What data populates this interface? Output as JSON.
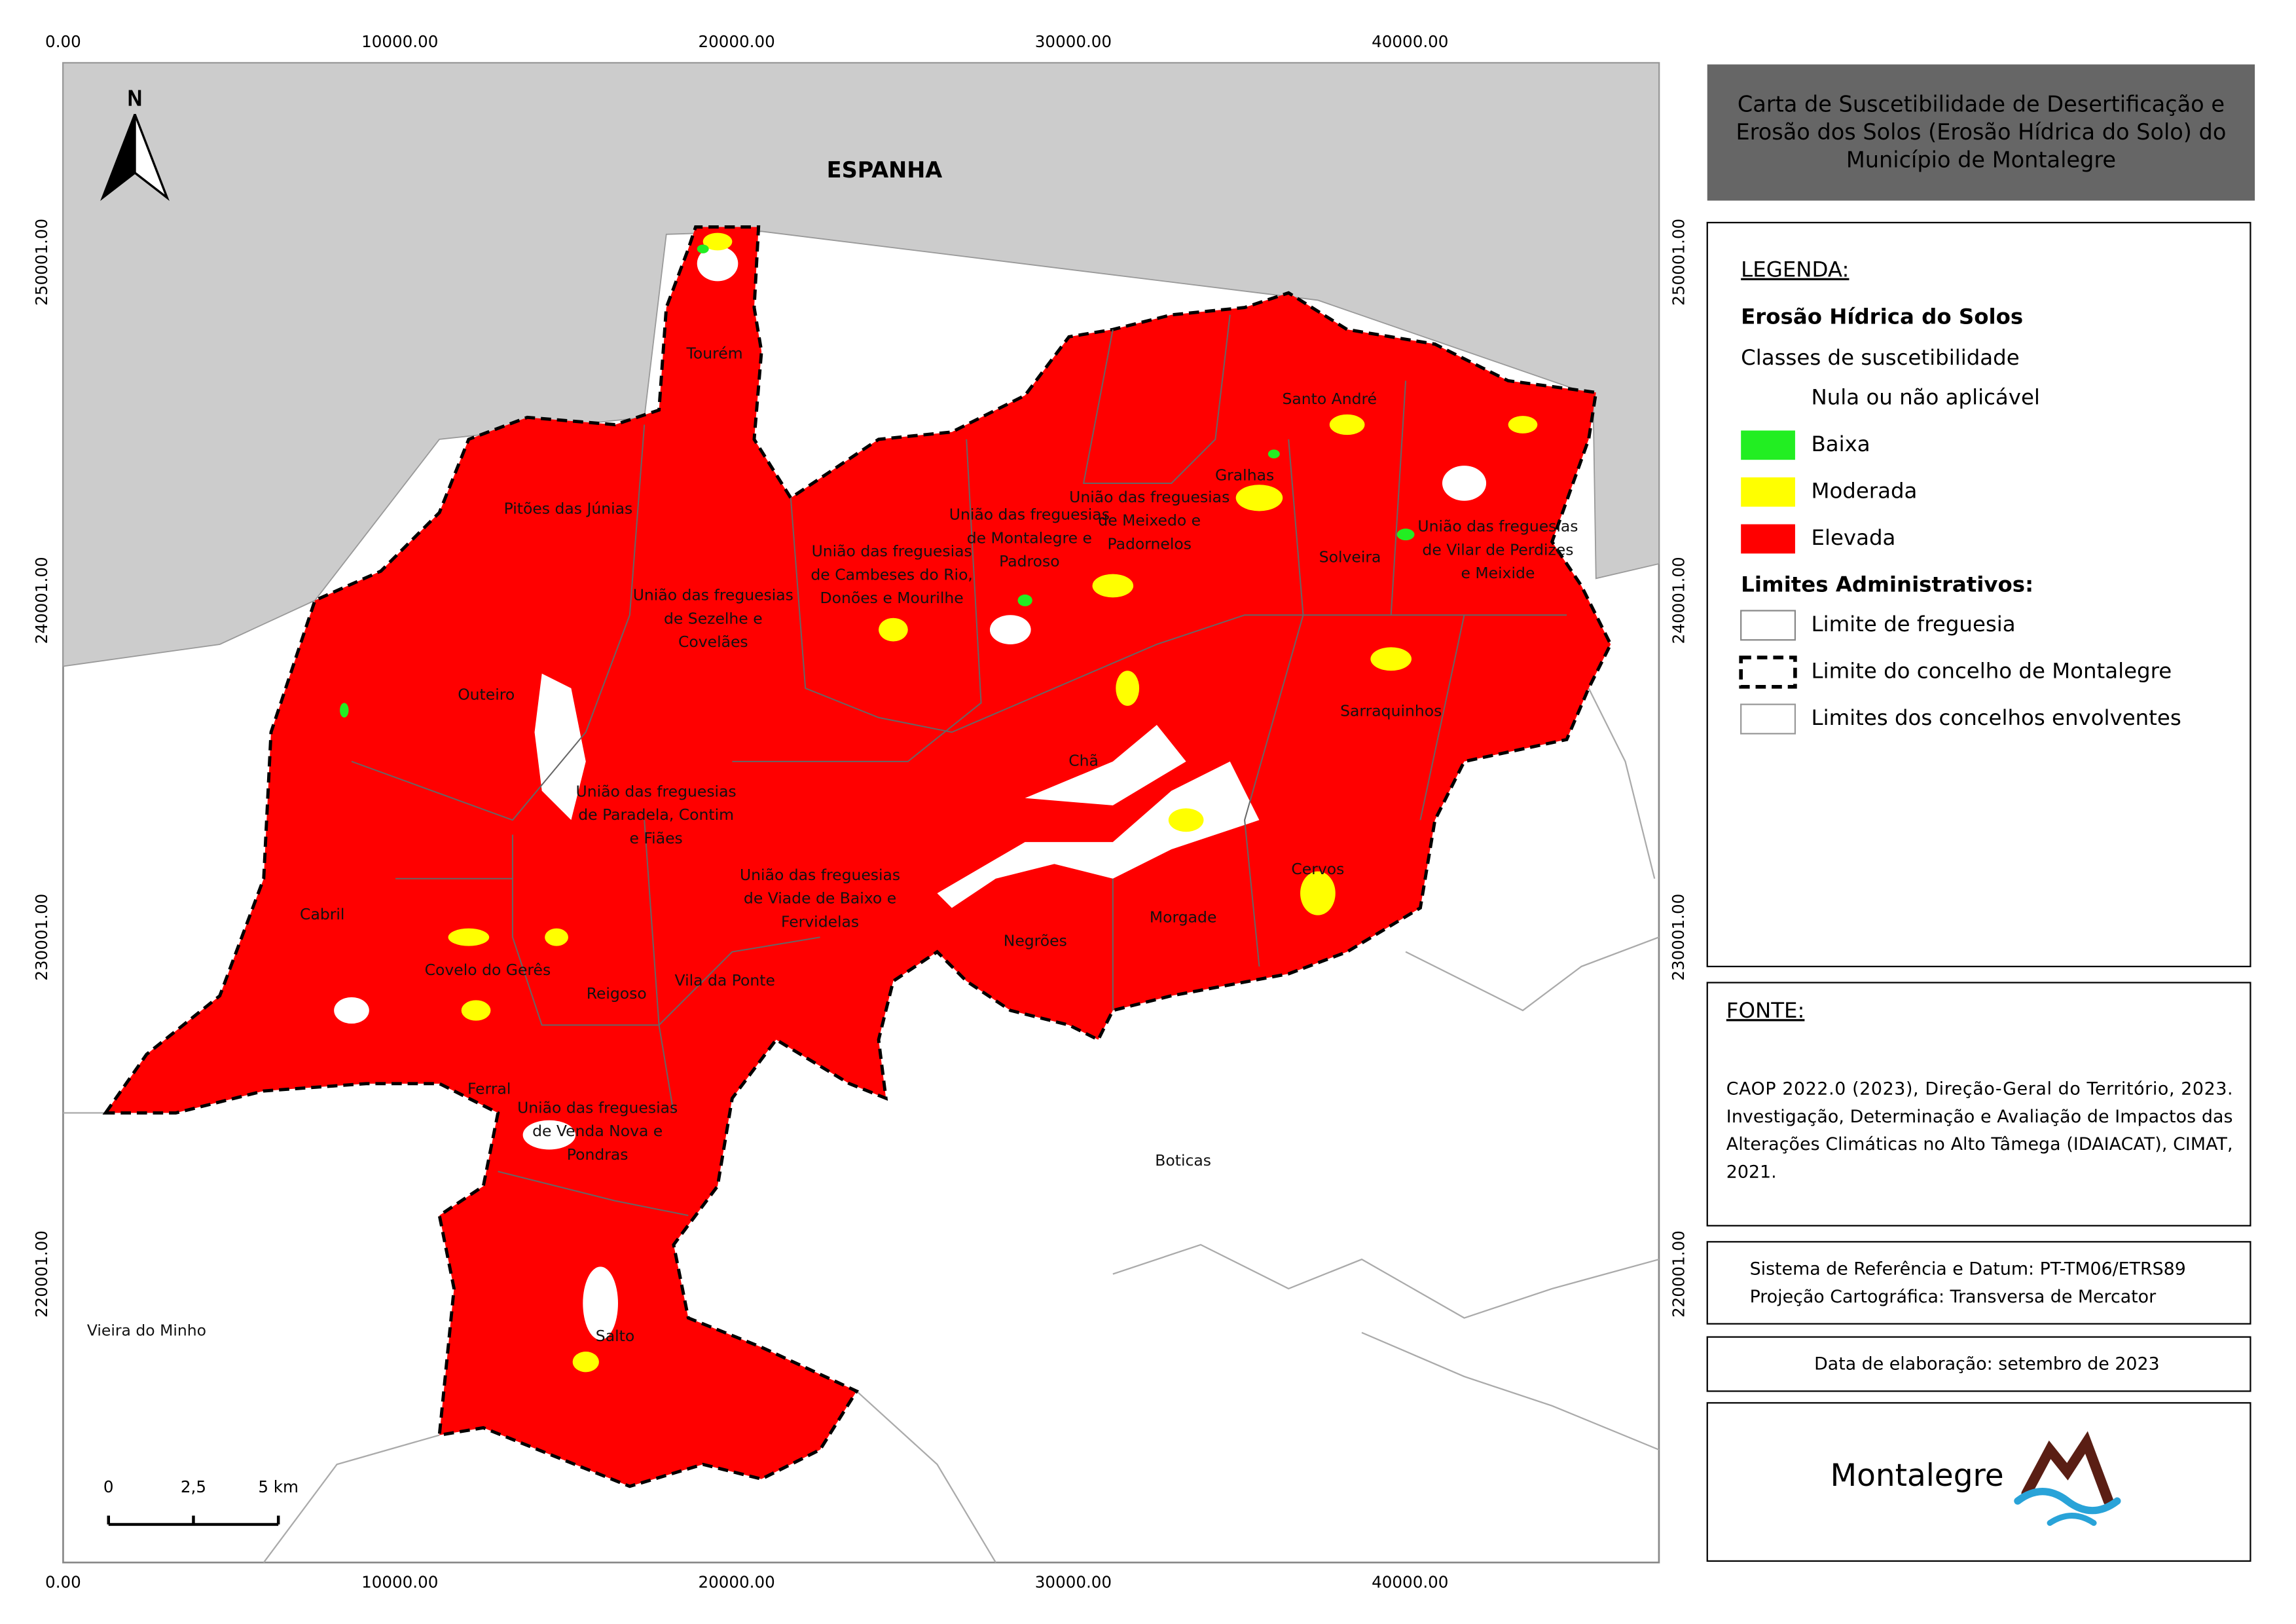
{
  "title_lines": [
    "Carta de Suscetibilidade de Desertificação e",
    "Erosão dos Solos (Erosão Hídrica do Solo) do",
    "Município de Montalegre"
  ],
  "axes": {
    "top": [
      "0.00",
      "10000.00",
      "20000.00",
      "30000.00",
      "40000.00"
    ],
    "bottom": [
      "0.00",
      "10000.00",
      "20000.00",
      "30000.00",
      "40000.00"
    ],
    "left": [
      "250001.00",
      "240001.00",
      "230001.00",
      "220001.00"
    ],
    "right": [
      "250001.00",
      "240001.00",
      "230001.00",
      "220001.00"
    ]
  },
  "north": "N",
  "country": "ESPANHA",
  "places": [
    [
      "Tourém"
    ],
    [
      "Pitões das Júnias"
    ],
    [
      "União das freguesias",
      "de Sezelhe e",
      "Covelães"
    ],
    [
      "Outeiro"
    ],
    [
      "União das freguesias",
      "de Paradela, Contim",
      "e Fiães"
    ],
    [
      "Cabril"
    ],
    [
      "Covelo do Gerês"
    ],
    [
      "Reigoso"
    ],
    [
      "Vila da Ponte"
    ],
    [
      "Ferral"
    ],
    [
      "União das freguesias",
      "de Venda Nova e",
      "Pondras"
    ],
    [
      "Salto"
    ],
    [
      "União das freguesias",
      "de Viade de Baixo e",
      "Fervidelas"
    ],
    [
      "União das freguesias",
      "de Cambeses do Rio,",
      "Donões e Mourilhe"
    ],
    [
      "União das freguesias",
      "de Montalegre e",
      "Padroso"
    ],
    [
      "União das freguesias",
      "de Meixedo e",
      "Padornelos"
    ],
    [
      "Gralhas"
    ],
    [
      "Santo André"
    ],
    [
      "Solveira"
    ],
    [
      "União das freguesias",
      "de Vilar de Perdizes",
      "e Meixide"
    ],
    [
      "Sarraquinhos"
    ],
    [
      "Chã"
    ],
    [
      "Negrões"
    ],
    [
      "Morgade"
    ],
    [
      "Cervos"
    ],
    [
      "Boticas"
    ],
    [
      "Vieira do Minho"
    ]
  ],
  "scale_bar": [
    "0",
    "2,5",
    "5 km"
  ],
  "legend": {
    "heading": "LEGENDA:",
    "subtitle": "Erosão Hídrica do Solos",
    "classes_title": "Classes de suscetibilidade",
    "classes": [
      {
        "label": "Nula ou não aplicável",
        "color": "#ffffff"
      },
      {
        "label": "Baixa",
        "color": "#22ee22"
      },
      {
        "label": "Moderada",
        "color": "#ffff00"
      },
      {
        "label": "Elevada",
        "color": "#ff0000"
      }
    ],
    "limits_title": "Limites Administrativos:",
    "limits": [
      "Limite de freguesia",
      "Limite do concelho de Montalegre",
      "Limites dos concelhos envolventes"
    ]
  },
  "source": {
    "heading": "FONTE:",
    "lines": [
      "CAOP 2022.0 (2023), Direção-Geral do Território, 2023.",
      "Investigação, Determinação e Avaliação de Impactos das",
      "Alterações Climáticas no Alto Tâmega (IDAIACAT), CIMAT,",
      "2021."
    ]
  },
  "reference": [
    "Sistema de Referência e Datum: PT-TM06/ETRS89",
    "Projeção Cartográfica: Transversa de Mercator"
  ],
  "date": "Data de elaboração: setembro de 2023",
  "logo": "Montalegre"
}
